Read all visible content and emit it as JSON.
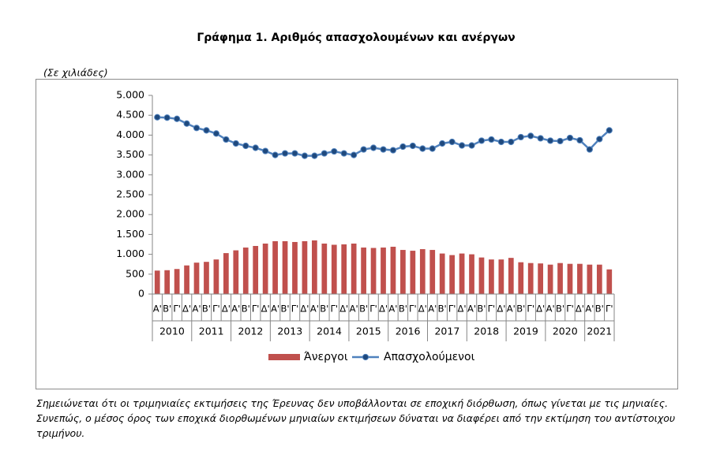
{
  "chart_data": {
    "type": "bar_line",
    "title": "Γράφημα 1. Αριθμός απασχολουμένων και ανέργων",
    "y_unit_label": "(Σε χιλιάδες)",
    "categories": [
      "Α'",
      "Β'",
      "Γ'",
      "Δ'",
      "Α'",
      "Β'",
      "Γ'",
      "Δ'",
      "Α'",
      "Β'",
      "Γ'",
      "Δ'",
      "Α'",
      "Β'",
      "Γ'",
      "Δ'",
      "Α'",
      "Β'",
      "Γ'",
      "Δ'",
      "Α'",
      "Β'",
      "Γ'",
      "Δ'",
      "Α'",
      "Β'",
      "Γ'",
      "Δ'",
      "Α'",
      "Β'",
      "Γ'",
      "Δ'",
      "Α'",
      "Β'",
      "Γ'",
      "Δ'",
      "Α'",
      "Β'",
      "Γ'",
      "Δ'",
      "Α'",
      "Β'",
      "Γ'",
      "Δ'",
      "Α'",
      "Β'",
      "Γ'"
    ],
    "years": [
      "2010",
      "2011",
      "2012",
      "2013",
      "2014",
      "2015",
      "2016",
      "2017",
      "2018",
      "2019",
      "2020",
      "2021"
    ],
    "series": [
      {
        "name": "Άνεργοι",
        "type": "bar",
        "color": "#c0504d",
        "values": [
          590,
          600,
          630,
          720,
          790,
          810,
          870,
          1030,
          1100,
          1170,
          1210,
          1270,
          1330,
          1330,
          1310,
          1330,
          1350,
          1270,
          1240,
          1250,
          1270,
          1170,
          1160,
          1170,
          1190,
          1110,
          1090,
          1130,
          1110,
          1020,
          980,
          1020,
          1000,
          920,
          870,
          870,
          910,
          800,
          780,
          770,
          740,
          780,
          760,
          760,
          740,
          740,
          620
        ]
      },
      {
        "name": "Απασχολούμενοι",
        "type": "line",
        "color": "#4f81bd",
        "marker_color": "#1f497d",
        "values": [
          4450,
          4440,
          4410,
          4290,
          4180,
          4120,
          4040,
          3890,
          3790,
          3730,
          3680,
          3600,
          3500,
          3540,
          3540,
          3480,
          3480,
          3540,
          3590,
          3540,
          3500,
          3640,
          3680,
          3640,
          3620,
          3710,
          3730,
          3660,
          3660,
          3790,
          3830,
          3740,
          3740,
          3860,
          3890,
          3830,
          3830,
          3950,
          3980,
          3920,
          3860,
          3850,
          3930,
          3870,
          3640,
          3900,
          4120
        ]
      }
    ],
    "ylim": [
      0,
      5000
    ],
    "yticks": [
      0,
      {
        "value": 500,
        "label": "500"
      },
      {
        "value": 1000,
        "label": "1.000"
      },
      {
        "value": 1500,
        "label": "1.500"
      },
      {
        "value": 2000,
        "label": "2.000"
      },
      {
        "value": 2500,
        "label": "2.500"
      },
      {
        "value": 3000,
        "label": "3.000"
      },
      {
        "value": 3500,
        "label": "3.500"
      },
      {
        "value": 4000,
        "label": "4.000"
      },
      {
        "value": 4500,
        "label": "4.500"
      },
      {
        "value": 5000,
        "label": "5.000"
      }
    ],
    "grid": false,
    "legend": "bottom"
  },
  "note": [
    "Σημειώνεται ότι οι τριμηνιαίες εκτιμήσεις της Έρευνας δεν υποβάλλονται σε εποχική διόρθωση, όπως γίνεται με τις μηνιαίες.",
    "Συνεπώς, ο μέσος όρος των εποχικά διορθωμένων μηνιαίων εκτιμήσεων δύναται να διαφέρει από την εκτίμηση του αντίστοιχου",
    "τριμήνου."
  ]
}
